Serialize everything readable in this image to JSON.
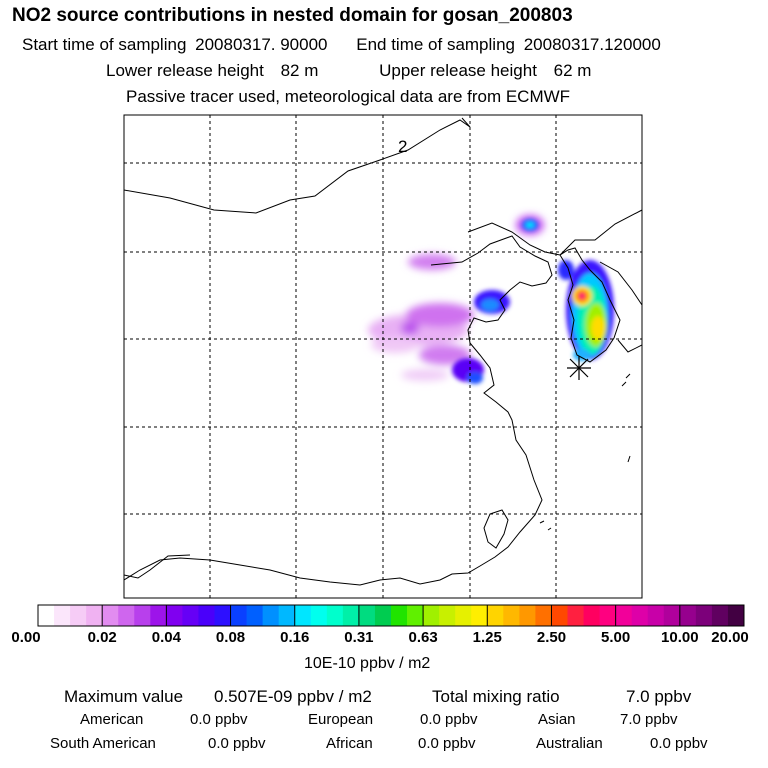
{
  "header": {
    "title": "NO2 source contributions in nested domain for gosan_200803",
    "start_label": "Start time of sampling",
    "start_value": "20080317. 90000",
    "end_label": "End time of sampling",
    "end_value": "20080317.120000",
    "lower_label": "Lower release height",
    "lower_value": "82 m",
    "upper_label": "Upper release height",
    "upper_value": "62 m",
    "tracer_note": "Passive tracer used, meteorological data are from ECMWF"
  },
  "map": {
    "contour_label": "2",
    "station_marker": "receptor-asterisk"
  },
  "colorbar": {
    "ticks": [
      "0.00",
      "0.02",
      "0.04",
      "0.08",
      "0.16",
      "0.31",
      "0.63",
      "1.25",
      "2.50",
      "5.00",
      "10.00",
      "20.00"
    ],
    "colors": [
      "#ffffff",
      "#fbe6fb",
      "#f6ccf6",
      "#f0b2f2",
      "#e28cf0",
      "#cf66ee",
      "#b840ec",
      "#9d14ea",
      "#8000f0",
      "#6600f6",
      "#4a00fa",
      "#2d10ff",
      "#0a40ff",
      "#0060ff",
      "#0090ff",
      "#00b8ff",
      "#00e6ff",
      "#00ffee",
      "#00ffcc",
      "#00f0a8",
      "#00dc80",
      "#00cc50",
      "#20e400",
      "#60f000",
      "#a0f000",
      "#c8f000",
      "#e6f000",
      "#ffee00",
      "#ffd400",
      "#ffb800",
      "#ff9800",
      "#ff7000",
      "#ff4800",
      "#ff2040",
      "#ff0060",
      "#ff0080",
      "#f2009a",
      "#de00a8",
      "#c800a8",
      "#b0009c",
      "#96008e",
      "#7c007a",
      "#600060",
      "#420042"
    ],
    "unit": "10E-10 ppbv / m2"
  },
  "summary": {
    "max_label": "Maximum value",
    "max_value": "0.507E-09 ppbv / m2",
    "total_label": "Total mixing ratio",
    "total_value": "7.0 ppbv",
    "regions": [
      {
        "name": "American",
        "value": "0.0 ppbv"
      },
      {
        "name": "European",
        "value": "0.0 ppbv"
      },
      {
        "name": "Asian",
        "value": "7.0 ppbv"
      },
      {
        "name": "South American",
        "value": "0.0 ppbv"
      },
      {
        "name": "African",
        "value": "0.0 ppbv"
      },
      {
        "name": "Australian",
        "value": "0.0 ppbv"
      }
    ]
  }
}
